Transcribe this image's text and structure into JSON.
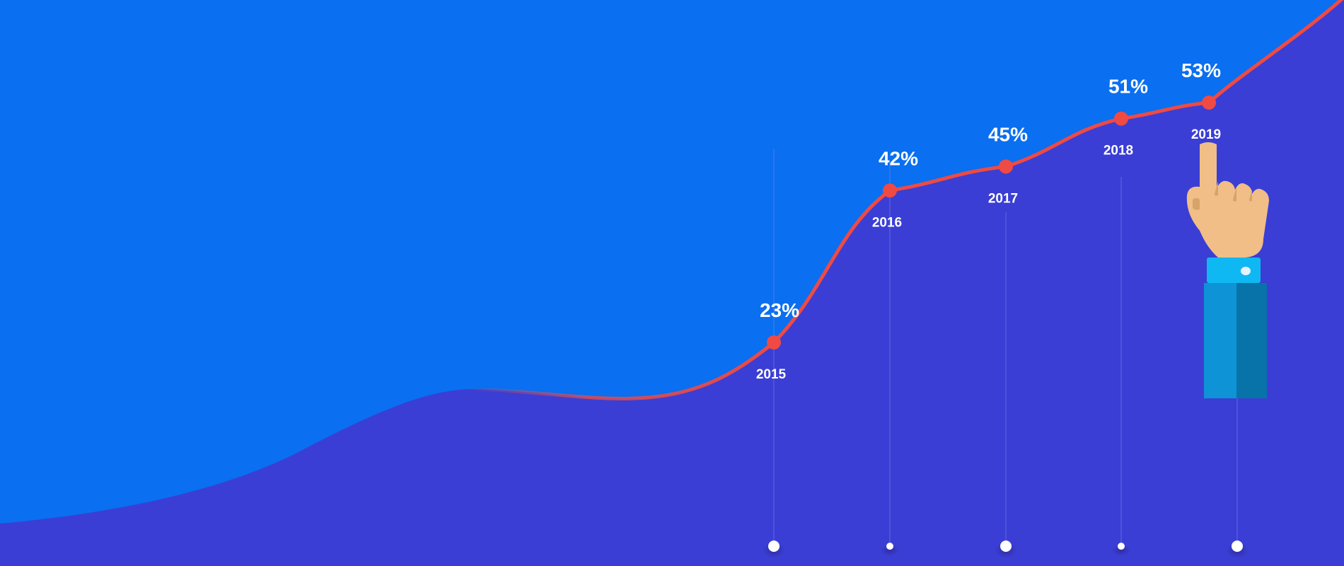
{
  "colors": {
    "background": "#0a6ff0",
    "area_fill": "#3a3ed4",
    "line": "#ef4a43",
    "marker": "#ef4a43",
    "label_text": "#ffffff",
    "guide_line": "#7f86ea",
    "axis_dot": "#ffffff",
    "hand_skin": "#f0be86",
    "cuff": "#0fb8f2",
    "sleeve_light": "#0d93d6",
    "sleeve_dark": "#0873a8"
  },
  "icons": {
    "hand": "pointing-hand-icon"
  },
  "chart_data": {
    "type": "line",
    "categories": [
      "2015",
      "2016",
      "2017",
      "2018",
      "2019"
    ],
    "series": [
      {
        "values": [
          23,
          42,
          45,
          51,
          53
        ],
        "labels": [
          "23%",
          "42%",
          "45%",
          "51%",
          "53%"
        ]
      }
    ],
    "axis_dots": 5,
    "grid": false,
    "legend": "none"
  }
}
